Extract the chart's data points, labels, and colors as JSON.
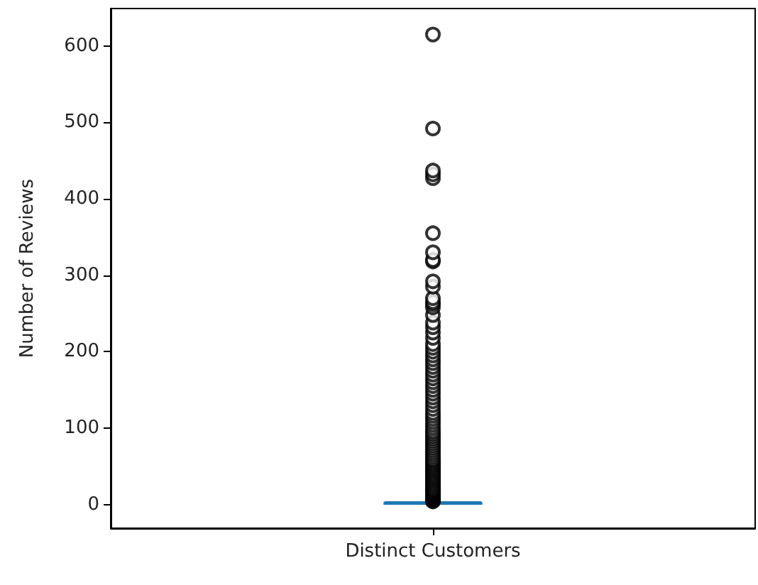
{
  "chart_data": {
    "type": "box",
    "ylabel": "Number of Reviews",
    "categories": [
      "Distinct Customers"
    ],
    "series": [
      {
        "color": "#1f77b4",
        "boxes": [
          {
            "low": 1,
            "q1": 1,
            "median": 1,
            "q3": 2,
            "high": 3,
            "outliers": [
              4,
              5,
              6,
              7,
              8,
              9,
              10,
              11,
              12,
              13,
              14,
              15,
              16,
              17,
              18,
              19,
              20,
              22,
              24,
              26,
              28,
              30,
              32,
              34,
              36,
              38,
              40,
              42,
              44,
              46,
              48,
              50,
              52,
              54,
              56,
              58,
              60,
              63,
              66,
              69,
              72,
              75,
              78,
              81,
              84,
              87,
              90,
              93,
              96,
              100,
              104,
              108,
              112,
              116,
              120,
              125,
              130,
              135,
              140,
              145,
              150,
              155,
              160,
              165,
              170,
              175,
              180,
              185,
              190,
              195,
              200,
              205,
              210,
              218,
              225,
              232,
              238,
              248,
              258,
              262,
              265,
              270,
              285,
              292,
              318,
              320,
              330,
              355,
              427,
              432,
              437,
              492,
              615
            ]
          }
        ]
      }
    ],
    "ylim": [
      -31,
      649
    ],
    "yticks": [
      0,
      100,
      200,
      300,
      400,
      500,
      600
    ],
    "grid": false,
    "marker": "circle"
  }
}
